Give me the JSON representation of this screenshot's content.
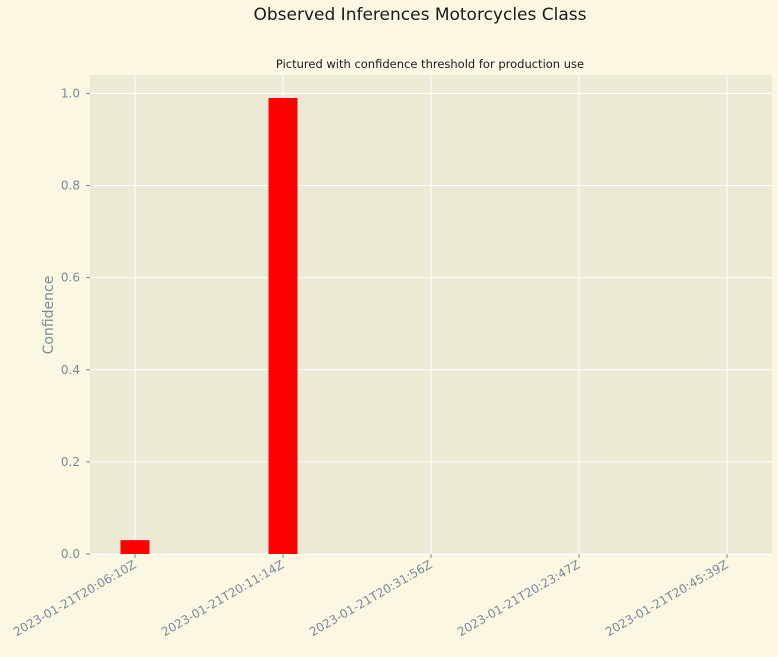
{
  "chart_data": {
    "type": "bar",
    "title": "Observed Inferences Motorcycles Class",
    "subtitle": "Pictured with confidence threshold for production use",
    "xlabel": "",
    "ylabel": "Confidence",
    "categories": [
      "2023-01-21T20:06:10Z",
      "2023-01-21T20:11:14Z",
      "2023-01-21T20:31:56Z",
      "2023-01-21T20:23:47Z",
      "2023-01-21T20:45:39Z"
    ],
    "values": [
      0.03,
      0.99,
      0,
      0,
      0
    ],
    "ylim": [
      0,
      1.04
    ],
    "yticks": [
      "0.0",
      "0.2",
      "0.4",
      "0.6",
      "0.8",
      "1.0"
    ],
    "grid": true,
    "legend": "none"
  },
  "colors": {
    "figure_background": "#fcf7e3",
    "plot_background": "#ece9d4",
    "grid": "#ffffff",
    "bar": "#ff0000",
    "tick_text": "#7a8a99",
    "title_text": "#1a1a1a"
  }
}
